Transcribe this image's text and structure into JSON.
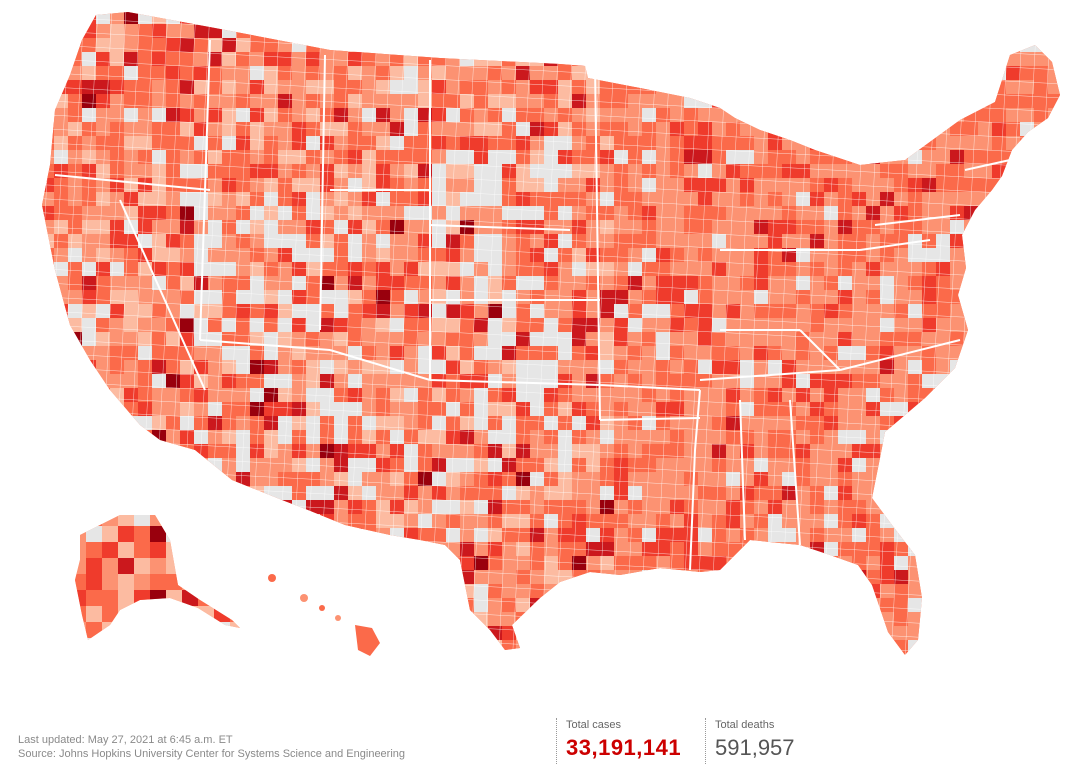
{
  "map": {
    "fill_colors": [
      "#e6e6e6",
      "#fcbba1",
      "#fc9272",
      "#fb6a4a",
      "#ef3b2c",
      "#cb181d",
      "#99000d"
    ],
    "border_color": "#ffffff"
  },
  "footer": {
    "updated": "Last updated: May 27, 2021 at 6:45 a.m. ET",
    "source": "Source: Johns Hopkins University Center for Systems Science and Engineering"
  },
  "stats": {
    "cases_label": "Total cases",
    "cases_value": "33,191,141",
    "deaths_label": "Total deaths",
    "deaths_value": "591,957"
  }
}
